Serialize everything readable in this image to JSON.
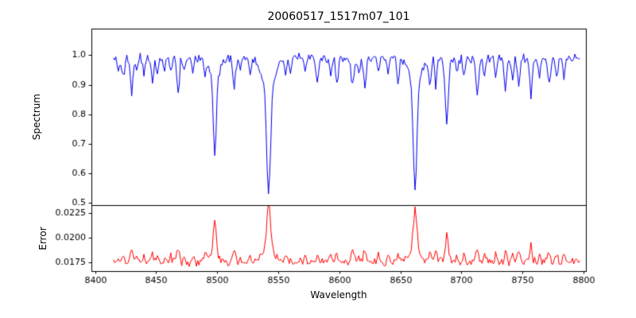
{
  "chart_data": {
    "type": "line",
    "title": "20060517_1517m07_101",
    "xlabel": "Wavelength",
    "xlim": [
      8397,
      8802
    ],
    "xticks": [
      8400,
      8450,
      8500,
      8550,
      8600,
      8650,
      8700,
      8750,
      8800
    ],
    "x_range": [
      8415,
      8797
    ],
    "x_step": 1,
    "grid": false,
    "legend": "none",
    "panels": [
      {
        "name": "spectrum",
        "ylabel": "Spectrum",
        "color": "#0000ee",
        "ylim": [
          0.493,
          1.09
        ],
        "yticks": [
          0.5,
          0.6,
          0.7,
          0.8,
          0.9,
          1.0
        ],
        "tick_decimals": 1
      },
      {
        "name": "error",
        "ylabel": "Error",
        "color": "#ff0000",
        "ylim": [
          0.0166,
          0.0233
        ],
        "yticks": [
          0.0175,
          0.02,
          0.0225
        ],
        "tick_decimals": 4
      }
    ],
    "continuum": 0.99,
    "noise_amplitude": 0.02,
    "error_baseline": 0.0175,
    "error_scale": 0.7,
    "error_noise": 0.0005,
    "strong_lines": [
      [
        8498.0,
        0.26,
        1.2,
        0.07,
        4.0
      ],
      [
        8542.1,
        0.36,
        1.5,
        0.11,
        5.0
      ],
      [
        8662.1,
        0.35,
        1.4,
        0.1,
        4.5
      ],
      [
        8688.0,
        0.18,
        1.2,
        0.03,
        3.0
      ]
    ],
    "weak_lines": [
      [
        8419,
        0.05,
        0.8
      ],
      [
        8423,
        0.06,
        1.0
      ],
      [
        8430,
        0.11,
        1.2
      ],
      [
        8434,
        0.05,
        0.8
      ],
      [
        8440,
        0.06,
        0.9
      ],
      [
        8447,
        0.07,
        1.0
      ],
      [
        8451,
        0.05,
        0.8
      ],
      [
        8457,
        0.04,
        0.8
      ],
      [
        8462,
        0.05,
        0.9
      ],
      [
        8468,
        0.12,
        1.0
      ],
      [
        8473,
        0.05,
        0.8
      ],
      [
        8480,
        0.04,
        0.8
      ],
      [
        8490,
        0.06,
        0.9
      ],
      [
        8514,
        0.09,
        1.1
      ],
      [
        8519,
        0.05,
        0.8
      ],
      [
        8527,
        0.05,
        0.9
      ],
      [
        8556,
        0.06,
        0.9
      ],
      [
        8560,
        0.05,
        0.8
      ],
      [
        8572,
        0.05,
        0.9
      ],
      [
        8582,
        0.08,
        1.0
      ],
      [
        8593,
        0.06,
        0.9
      ],
      [
        8598,
        0.09,
        1.0
      ],
      [
        8611,
        0.1,
        1.1
      ],
      [
        8616,
        0.06,
        0.9
      ],
      [
        8621,
        0.1,
        1.0
      ],
      [
        8632,
        0.05,
        0.8
      ],
      [
        8640,
        0.05,
        0.8
      ],
      [
        8648,
        0.08,
        1.0
      ],
      [
        8674,
        0.1,
        1.0
      ],
      [
        8679,
        0.09,
        0.9
      ],
      [
        8696,
        0.05,
        0.8
      ],
      [
        8702,
        0.06,
        0.9
      ],
      [
        8713,
        0.12,
        1.1
      ],
      [
        8719,
        0.06,
        0.9
      ],
      [
        8728,
        0.06,
        0.9
      ],
      [
        8736,
        0.1,
        1.0
      ],
      [
        8742,
        0.06,
        0.9
      ],
      [
        8747,
        0.09,
        1.0
      ],
      [
        8757,
        0.13,
        1.1
      ],
      [
        8764,
        0.07,
        0.9
      ],
      [
        8772,
        0.08,
        1.0
      ],
      [
        8778,
        0.06,
        0.9
      ],
      [
        8784,
        0.06,
        0.9
      ]
    ]
  }
}
